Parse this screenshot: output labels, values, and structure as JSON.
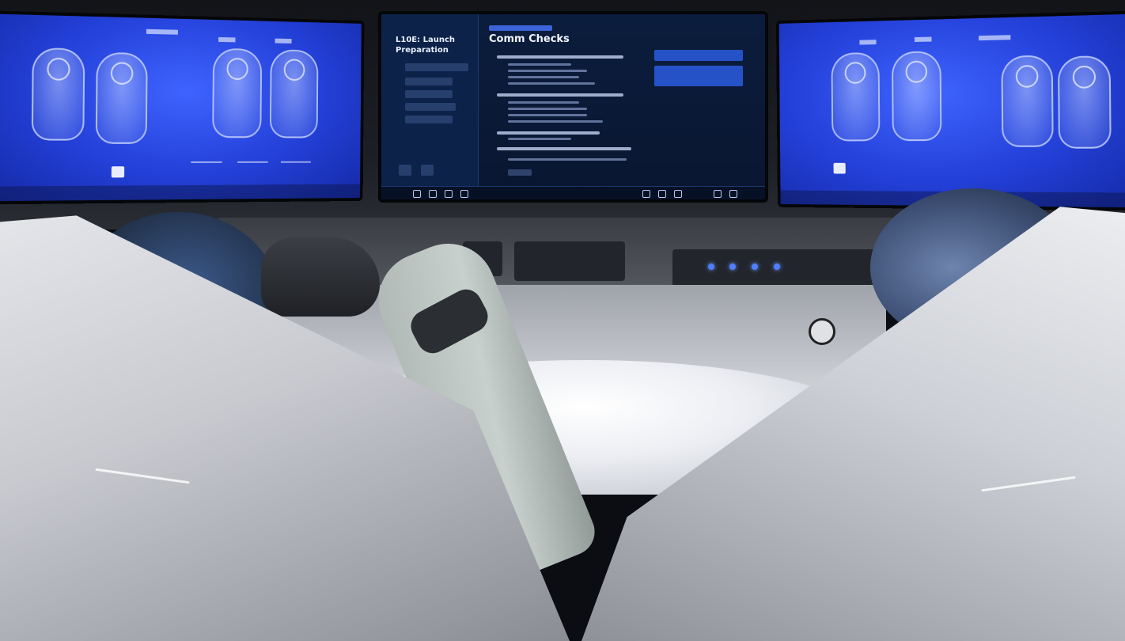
{
  "center_screen": {
    "procedure_title": "L10E: Launch Preparation",
    "page_title": "Comm Checks"
  },
  "colors": {
    "screen_blue": "#2340d8",
    "checklist_bg": "#0b1d3d",
    "console_led": "#4f7fff",
    "suit": "#c7d0cd"
  }
}
